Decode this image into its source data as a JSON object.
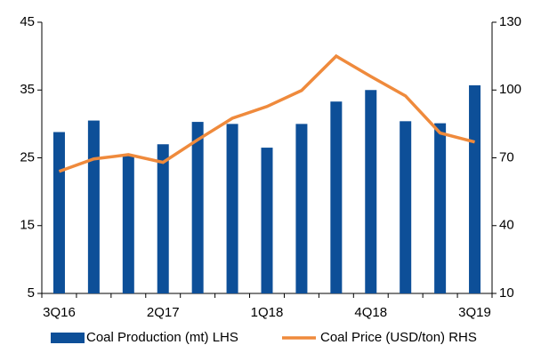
{
  "chart_data": {
    "type": "bar_line",
    "categories": [
      "3Q16",
      null,
      null,
      "2Q17",
      null,
      null,
      "1Q18",
      null,
      null,
      "4Q18",
      null,
      null,
      "3Q19"
    ],
    "series": [
      {
        "name": "Coal Production (mt) LHS",
        "type": "bar",
        "color": "#0d4f98",
        "axis": "y",
        "values": [
          28.8,
          30.5,
          25.3,
          27,
          30.3,
          30,
          26.5,
          30,
          33.3,
          35,
          30.4,
          30.1,
          35.7
        ]
      },
      {
        "name": "Coal Price (USD/ton) RHS",
        "type": "line",
        "color": "#ef8a3c",
        "axis": "y2",
        "values": [
          64,
          69.5,
          71.4,
          68,
          78,
          87.5,
          92.7,
          99.8,
          115,
          106,
          97.4,
          81,
          77
        ]
      }
    ],
    "ylim": [
      5,
      45
    ],
    "yticks": [
      5,
      15,
      25,
      35,
      45
    ],
    "y2lim": [
      10,
      130
    ],
    "y2ticks": [
      10,
      40,
      70,
      100,
      130
    ],
    "grid": false,
    "legend": "bottom"
  }
}
